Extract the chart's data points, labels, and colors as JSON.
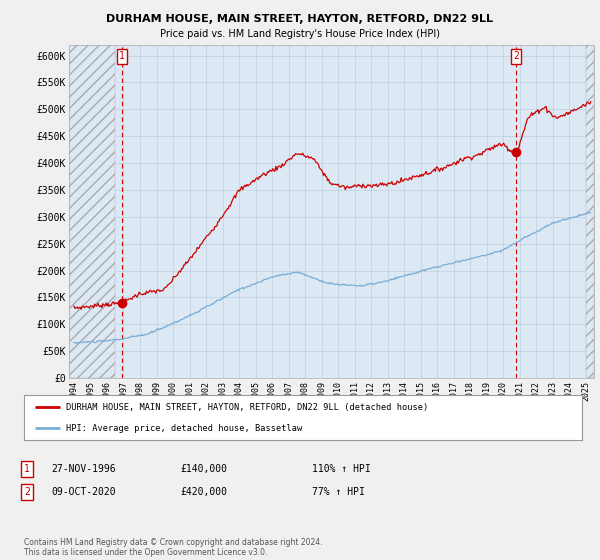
{
  "title": "DURHAM HOUSE, MAIN STREET, HAYTON, RETFORD, DN22 9LL",
  "subtitle": "Price paid vs. HM Land Registry's House Price Index (HPI)",
  "ylim": [
    0,
    620000
  ],
  "yticks": [
    0,
    50000,
    100000,
    150000,
    200000,
    250000,
    300000,
    350000,
    400000,
    450000,
    500000,
    550000,
    600000
  ],
  "ytick_labels": [
    "£0",
    "£50K",
    "£100K",
    "£150K",
    "£200K",
    "£250K",
    "£300K",
    "£350K",
    "£400K",
    "£450K",
    "£500K",
    "£550K",
    "£600K"
  ],
  "xlim_start": 1993.7,
  "xlim_end": 2025.5,
  "property_color": "#cc0000",
  "hpi_color": "#7aadd4",
  "marker1_date": 1996.91,
  "marker1_value": 140000,
  "marker2_date": 2020.78,
  "marker2_value": 420000,
  "legend_property": "DURHAM HOUSE, MAIN STREET, HAYTON, RETFORD, DN22 9LL (detached house)",
  "legend_hpi": "HPI: Average price, detached house, Bassetlaw",
  "annotation1_label": "1",
  "annotation1_date": "27-NOV-1996",
  "annotation1_price": "£140,000",
  "annotation1_hpi": "110% ↑ HPI",
  "annotation2_label": "2",
  "annotation2_date": "09-OCT-2020",
  "annotation2_price": "£420,000",
  "annotation2_hpi": "77% ↑ HPI",
  "footer": "Contains HM Land Registry data © Crown copyright and database right 2024.\nThis data is licensed under the Open Government Licence v3.0.",
  "bg_color": "#f0f0f0",
  "plot_bg_color": "#dce9f5",
  "hatch_end": 1996.5
}
